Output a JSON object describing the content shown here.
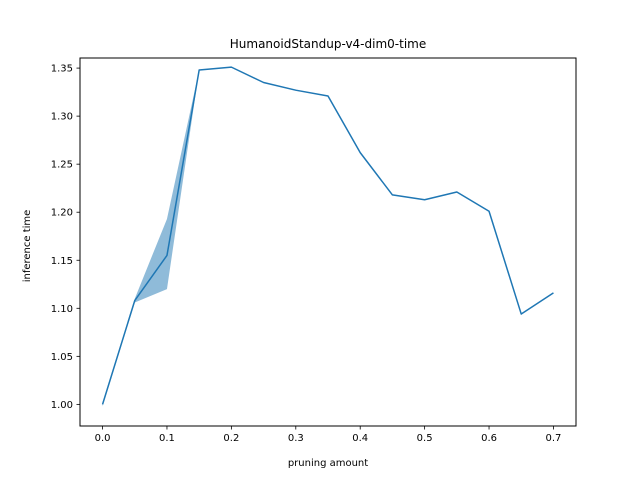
{
  "chart_data": {
    "type": "line",
    "title": "HumanoidStandup-v4-dim0-time",
    "xlabel": "pruning amount",
    "ylabel": "inference time",
    "xlim": [
      -0.035,
      0.735
    ],
    "ylim": [
      0.9775,
      1.3605
    ],
    "x_ticks": [
      0.0,
      0.1,
      0.2,
      0.3,
      0.4,
      0.5,
      0.6,
      0.7
    ],
    "x_tick_labels": [
      "0.0",
      "0.1",
      "0.2",
      "0.3",
      "0.4",
      "0.5",
      "0.6",
      "0.7"
    ],
    "y_ticks": [
      1.0,
      1.05,
      1.1,
      1.15,
      1.2,
      1.25,
      1.3,
      1.35
    ],
    "y_tick_labels": [
      "1.00",
      "1.05",
      "1.10",
      "1.15",
      "1.20",
      "1.25",
      "1.30",
      "1.35"
    ],
    "grid": false,
    "series": [
      {
        "color": "#1f77b4",
        "band_color": "#1f77b4",
        "x": [
          0.0,
          0.05,
          0.1,
          0.15,
          0.2,
          0.25,
          0.3,
          0.35,
          0.4,
          0.45,
          0.5,
          0.55,
          0.6,
          0.65,
          0.7
        ],
        "y": [
          1.0,
          1.108,
          1.155,
          1.348,
          1.351,
          1.335,
          1.327,
          1.321,
          1.262,
          1.218,
          1.213,
          1.221,
          1.201,
          1.094,
          1.116
        ],
        "lower": [
          0.998,
          1.106,
          1.12,
          1.348,
          1.351,
          1.335,
          1.327,
          1.321,
          1.262,
          1.218,
          1.213,
          1.221,
          1.201,
          1.094,
          1.116
        ],
        "upper": [
          1.002,
          1.11,
          1.193,
          1.348,
          1.351,
          1.335,
          1.327,
          1.321,
          1.262,
          1.218,
          1.213,
          1.221,
          1.201,
          1.094,
          1.116
        ]
      }
    ]
  }
}
